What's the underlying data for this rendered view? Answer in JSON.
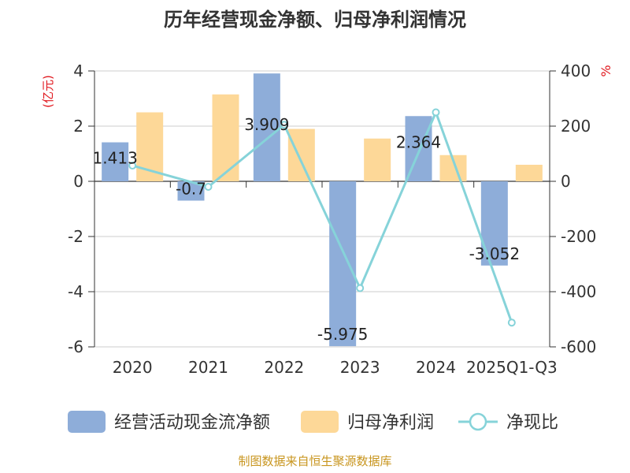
{
  "title": "历年经营现金净额、归母净利润情况",
  "source": "制图数据来自恒生聚源数据库",
  "colors": {
    "cash": "#8eadd9",
    "profit": "#fdd898",
    "ratio": "#86d3d9",
    "unit": "#e0161c",
    "source": "#c8951e"
  },
  "chart_data": {
    "type": "bar",
    "title": "历年经营现金净额、归母净利润情况",
    "categories": [
      "2020",
      "2021",
      "2022",
      "2023",
      "2024",
      "2025Q1-Q3"
    ],
    "y_left": {
      "unit": "(亿元)",
      "ylim": [
        -6,
        4
      ],
      "ticks": [
        "4",
        "2",
        "0",
        "-2",
        "-4",
        "-6"
      ]
    },
    "y_right": {
      "unit": "%",
      "ylim": [
        -600,
        400
      ],
      "ticks": [
        "400",
        "200",
        "0",
        "-200",
        "-400",
        "-600"
      ]
    },
    "grid": true,
    "legend_position": "bottom",
    "series": [
      {
        "name": "经营活动现金流净额",
        "type": "bar",
        "axis": "left",
        "values": [
          1.413,
          -0.7,
          3.909,
          -5.975,
          2.364,
          -3.052
        ],
        "labels": [
          "1.413",
          "-0.7",
          "3.909",
          "-5.975",
          "2.364",
          "-3.052"
        ]
      },
      {
        "name": "归母净利润",
        "type": "bar",
        "axis": "left",
        "values": [
          2.5,
          3.15,
          1.9,
          1.55,
          0.95,
          0.6
        ]
      },
      {
        "name": "净现比",
        "type": "line",
        "axis": "right",
        "values": [
          57,
          -20,
          205,
          -387,
          250,
          -512
        ]
      }
    ]
  }
}
